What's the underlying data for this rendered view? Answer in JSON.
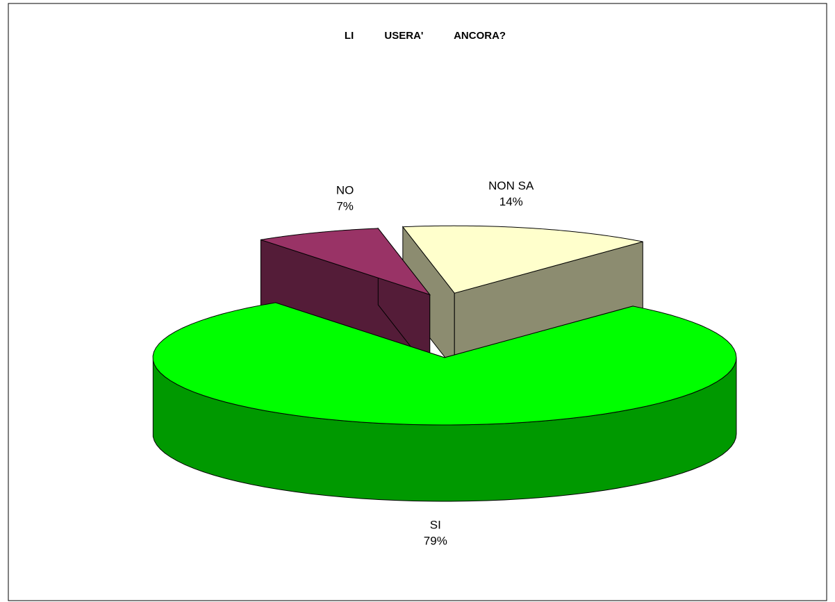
{
  "chart_data": {
    "type": "pie",
    "title": "LI USERA' ANCORA?",
    "categories": [
      "NON SA",
      "SI",
      "NO"
    ],
    "values": [
      14,
      79,
      7
    ],
    "value_labels": [
      "14%",
      "79%",
      "7%"
    ],
    "colors": [
      "#ffffcc",
      "#00ff00",
      "#993366"
    ]
  }
}
